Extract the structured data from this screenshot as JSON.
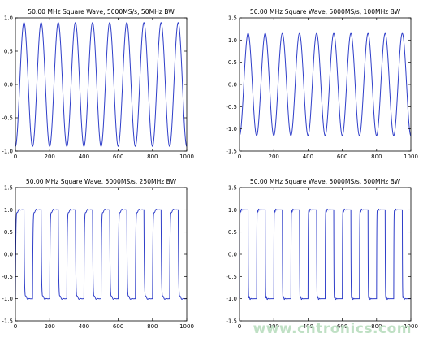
{
  "chart_data": [
    {
      "type": "line",
      "title": "50.00 MHz Square Wave, 5000MS/s, 50MHz BW",
      "xlabel": "",
      "ylabel": "",
      "xlim": [
        0,
        1000
      ],
      "ylim": [
        -1.0,
        1.0
      ],
      "xticks": [
        0,
        200,
        400,
        600,
        800,
        1000
      ],
      "yticks": [
        -1.0,
        -0.5,
        0.0,
        0.5,
        1.0
      ],
      "grid": false,
      "series": [
        {
          "bandwidth_mhz": 50,
          "period_samples": 100,
          "amplitude": 0.93,
          "x": [
            0,
            25,
            50,
            75,
            100,
            125,
            150,
            175,
            200,
            225,
            250,
            275,
            300,
            325,
            350,
            375,
            400,
            425,
            450,
            475,
            500,
            525,
            550,
            575,
            600,
            625,
            650,
            675,
            700,
            725,
            750,
            775,
            800,
            825,
            850,
            875,
            900,
            925,
            950,
            975,
            1000
          ],
          "values": [
            -0.5,
            0.0,
            0.93,
            0.0,
            -0.93,
            0.0,
            0.93,
            0.0,
            -0.93,
            0.0,
            0.93,
            0.0,
            -0.93,
            0.0,
            0.93,
            0.0,
            -0.93,
            0.0,
            0.93,
            0.0,
            -0.93,
            0.0,
            0.93,
            0.0,
            -0.93,
            0.0,
            0.93,
            0.0,
            -0.93,
            0.0,
            0.93,
            0.0,
            -0.93,
            0.0,
            0.93,
            0.0,
            -0.93,
            0.0,
            0.93,
            0.0,
            -0.6
          ]
        }
      ]
    },
    {
      "type": "line",
      "title": "50.00 MHz Square Wave, 5000MS/s, 100MHz BW",
      "xlabel": "",
      "ylabel": "",
      "xlim": [
        0,
        1000
      ],
      "ylim": [
        -1.5,
        1.5
      ],
      "xticks": [
        0,
        200,
        400,
        600,
        800,
        1000
      ],
      "yticks": [
        -1.5,
        -1.0,
        -0.5,
        0.0,
        0.5,
        1.0,
        1.5
      ],
      "grid": false,
      "series": [
        {
          "bandwidth_mhz": 100,
          "period_samples": 100,
          "amplitude": 1.15,
          "x": [
            0,
            10,
            25,
            50,
            75,
            100,
            125,
            150,
            175,
            200,
            225,
            250,
            275,
            300,
            325,
            350,
            375,
            400,
            425,
            450,
            475,
            500,
            525,
            550,
            575,
            600,
            625,
            650,
            675,
            700,
            725,
            750,
            775,
            800,
            825,
            850,
            875,
            900,
            925,
            950,
            975,
            1000
          ],
          "values": [
            -1.1,
            -0.6,
            0.0,
            1.15,
            0.0,
            -1.15,
            0.0,
            1.15,
            0.0,
            -1.15,
            0.0,
            1.15,
            0.0,
            -1.15,
            0.0,
            1.15,
            0.0,
            -1.15,
            0.0,
            1.15,
            0.0,
            -1.15,
            0.0,
            1.15,
            0.0,
            -1.15,
            0.0,
            1.15,
            0.0,
            -1.15,
            0.0,
            1.15,
            0.0,
            -1.15,
            0.0,
            1.15,
            0.0,
            -1.15,
            0.0,
            1.15,
            0.0,
            -1.1
          ]
        }
      ]
    },
    {
      "type": "line",
      "title": "50.00 MHz Square Wave, 5000MS/s, 250MHz BW",
      "xlabel": "",
      "ylabel": "",
      "xlim": [
        0,
        1000
      ],
      "ylim": [
        -1.5,
        1.5
      ],
      "xticks": [
        0,
        200,
        400,
        600,
        800,
        1000
      ],
      "yticks": [
        -1.5,
        -1.0,
        -0.5,
        0.0,
        0.5,
        1.0,
        1.5
      ],
      "grid": false,
      "series": [
        {
          "bandwidth_mhz": 250,
          "period_samples": 100,
          "high_level": 1.0,
          "low_level": -1.0,
          "overshoot": 0.17,
          "x": [
            0,
            50,
            100,
            150,
            200,
            250,
            300,
            350,
            400,
            450,
            500,
            550,
            600,
            650,
            700,
            750,
            800,
            850,
            900,
            950,
            1000
          ],
          "values": [
            -1.0,
            1.0,
            -1.0,
            1.0,
            -1.0,
            1.0,
            -1.0,
            1.0,
            -1.0,
            1.0,
            -1.0,
            1.0,
            -1.0,
            1.0,
            -1.0,
            1.0,
            -1.0,
            1.0,
            -1.0,
            1.0,
            -1.0
          ]
        }
      ]
    },
    {
      "type": "line",
      "title": "50.00 MHz Square Wave, 5000MS/s, 500MHz BW",
      "xlabel": "",
      "ylabel": "",
      "xlim": [
        0,
        1000
      ],
      "ylim": [
        -1.5,
        1.5
      ],
      "xticks": [
        0,
        200,
        400,
        600,
        800,
        1000
      ],
      "yticks": [
        -1.5,
        -1.0,
        -0.5,
        0.0,
        0.5,
        1.0,
        1.5
      ],
      "grid": false,
      "series": [
        {
          "bandwidth_mhz": 500,
          "period_samples": 100,
          "high_level": 1.0,
          "low_level": -1.0,
          "overshoot": 0.18,
          "x": [
            0,
            50,
            100,
            150,
            200,
            250,
            300,
            350,
            400,
            450,
            500,
            550,
            600,
            650,
            700,
            750,
            800,
            850,
            900,
            950,
            1000
          ],
          "values": [
            -1.0,
            1.0,
            -1.0,
            1.0,
            -1.0,
            1.0,
            -1.0,
            1.0,
            -1.0,
            1.0,
            -1.0,
            1.0,
            -1.0,
            1.0,
            -1.0,
            1.0,
            -1.0,
            1.0,
            -1.0,
            1.0,
            -1.0
          ]
        }
      ]
    }
  ],
  "colors": {
    "line": "#2f3ec9",
    "axis": "#000000",
    "text": "#000000",
    "watermark": "#bfe0c4"
  },
  "watermark": "www.cntronics.com"
}
